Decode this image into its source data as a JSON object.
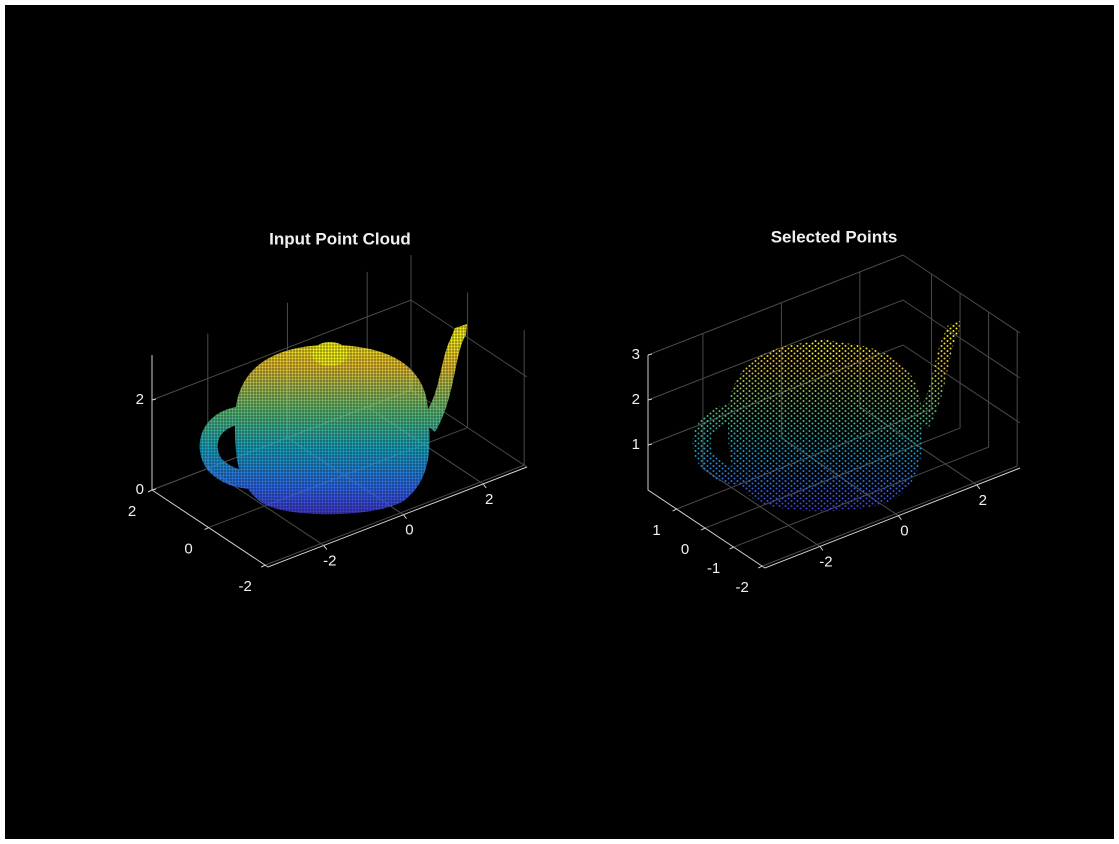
{
  "chart_data": [
    {
      "type": "scatter3d",
      "title": "Input Point Cloud",
      "xlim": [
        -3.4,
        3.1
      ],
      "ylim": [
        -2.1,
        2.0
      ],
      "zlim": [
        0,
        3
      ],
      "xticks": [
        -2,
        0,
        2
      ],
      "yticks": [
        -2,
        0,
        2
      ],
      "zticks": [
        0,
        2
      ],
      "grid": true,
      "colormap": "parula",
      "marker_density": "dense"
    },
    {
      "type": "scatter3d",
      "title": "Selected Points",
      "xlim": [
        -3.4,
        3.1
      ],
      "ylim": [
        -2.1,
        2.0
      ],
      "zlim": [
        0,
        3
      ],
      "xticks": [
        -2,
        0,
        2
      ],
      "yticks": [
        -2,
        -1,
        0,
        1
      ],
      "zticks": [
        1,
        2,
        3
      ],
      "grid": true,
      "colormap": "parula",
      "marker_density": "sparse"
    }
  ]
}
